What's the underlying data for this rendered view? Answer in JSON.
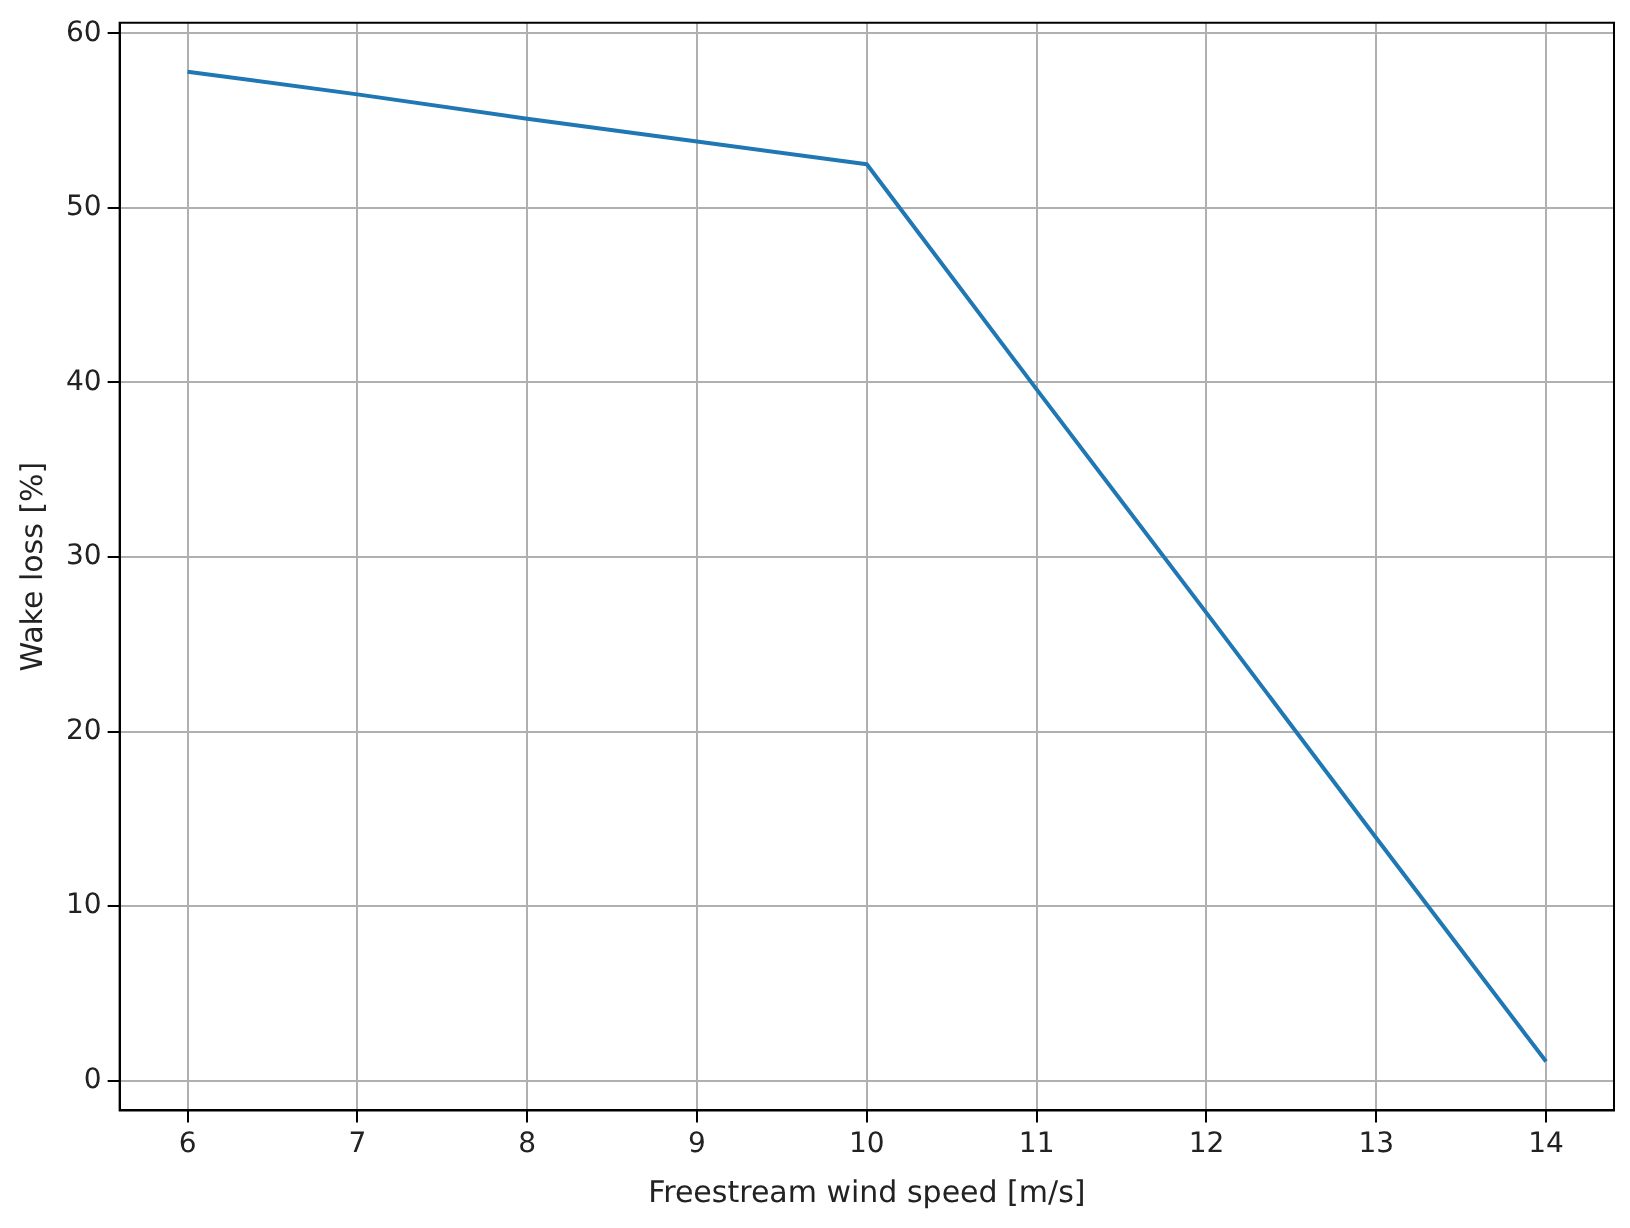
{
  "chart_data": {
    "type": "line",
    "xlabel": "Freestream wind speed [m/s]",
    "ylabel": "Wake loss [%]",
    "x": [
      6,
      7,
      8,
      9,
      10,
      11,
      12,
      13,
      14
    ],
    "series": [
      {
        "color": "#1f77b4",
        "values": [
          57.8,
          56.5,
          55.1,
          53.8,
          52.5,
          39.6,
          26.8,
          13.9,
          1.1
        ]
      }
    ],
    "xlim": [
      5.6,
      14.4
    ],
    "xticks": [
      6,
      7,
      8,
      9,
      10,
      11,
      12,
      13,
      14
    ],
    "ylim": [
      -1.7,
      60.6
    ],
    "yticks": [
      0,
      10,
      20,
      30,
      40,
      50,
      60
    ],
    "grid": true,
    "legend": false,
    "marker": "none",
    "line_style": "solid"
  }
}
